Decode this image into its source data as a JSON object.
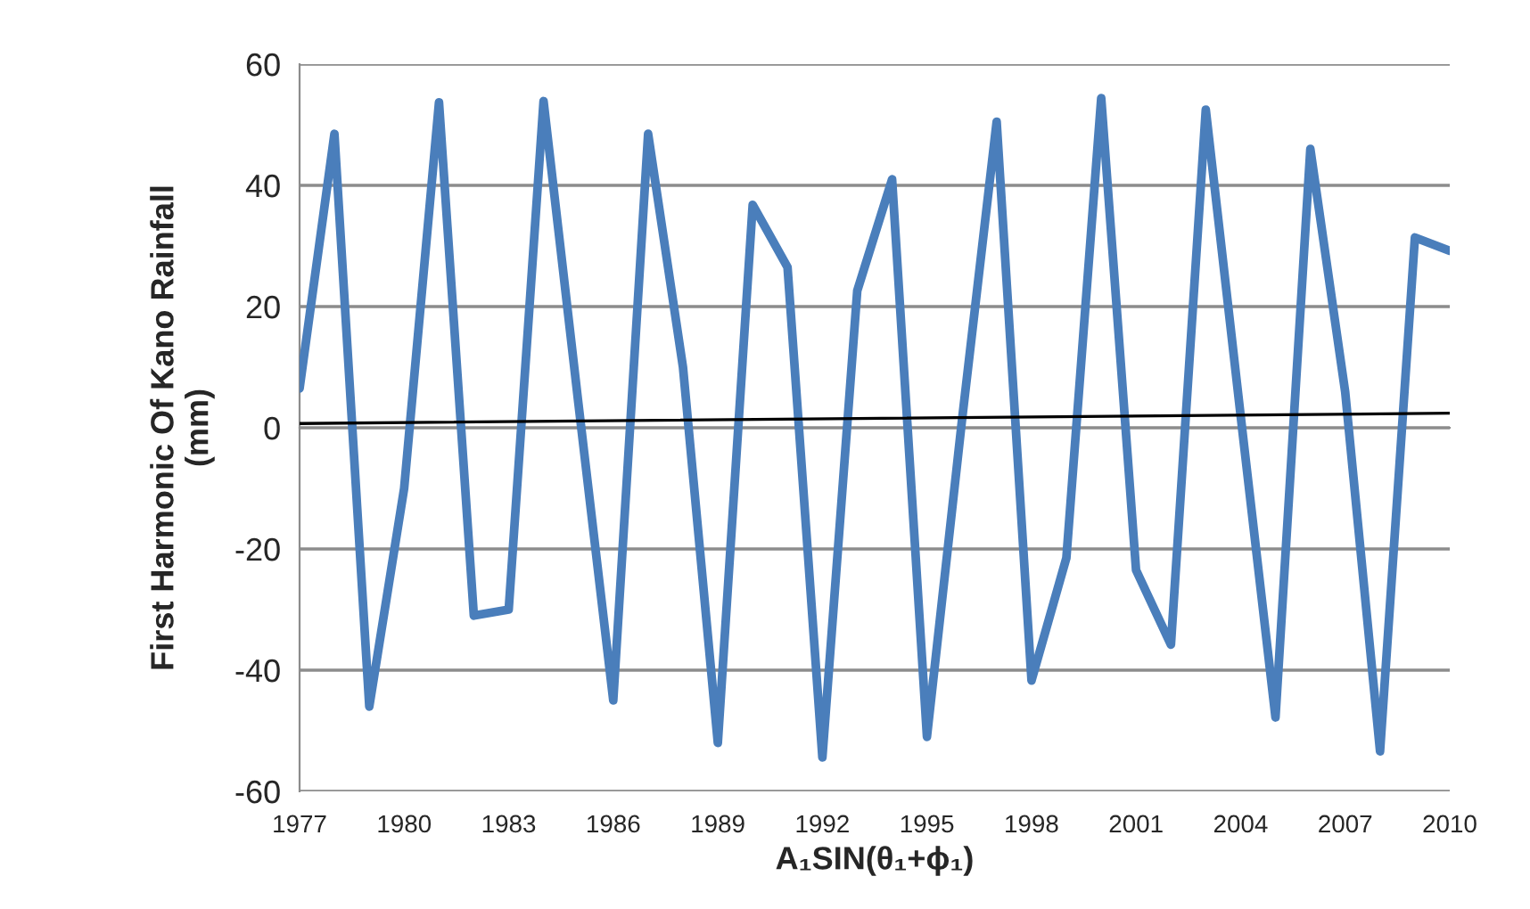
{
  "chart_data": {
    "type": "line",
    "xlabel": "A₁SIN(θ₁+ϕ₁)",
    "ylabel": "First Harmonic Of Kano Rainfall\n(mm)",
    "x": [
      1977,
      1978,
      1979,
      1980,
      1981,
      1982,
      1983,
      1984,
      1985,
      1986,
      1987,
      1988,
      1989,
      1990,
      1991,
      1992,
      1993,
      1994,
      1995,
      1996,
      1997,
      1998,
      1999,
      2000,
      2001,
      2002,
      2003,
      2004,
      2005,
      2006,
      2007,
      2008,
      2009,
      2010
    ],
    "series": [
      {
        "color": "#4a7ebb",
        "values": [
          6.5,
          48.5,
          -46,
          -10,
          53.7,
          -31,
          -30,
          53.9,
          4,
          -45,
          48.5,
          10,
          -52,
          36.8,
          26.5,
          -54.4,
          22.6,
          41,
          -51,
          1,
          50.5,
          -41.7,
          -21.5,
          54.4,
          -23.5,
          -35.8,
          52.5,
          2,
          -47.8,
          46,
          5.9,
          -53.4,
          31.4,
          29.2
        ]
      },
      {
        "color": "#000000",
        "x": [
          1977,
          2010
        ],
        "values": [
          0.7,
          2.4
        ]
      }
    ],
    "xlim": [
      1977,
      2010
    ],
    "xticks": [
      1977,
      1980,
      1983,
      1986,
      1989,
      1992,
      1995,
      1998,
      2001,
      2004,
      2007,
      2010
    ],
    "ylim": [
      -60,
      60
    ],
    "yticks": [
      -60,
      -40,
      -20,
      0,
      20,
      40,
      60
    ],
    "grid": "y"
  }
}
